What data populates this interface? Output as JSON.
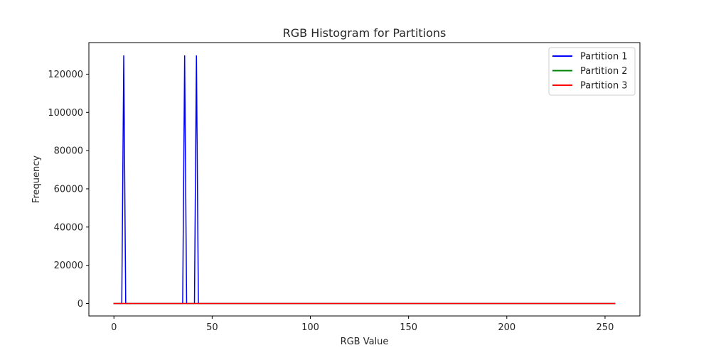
{
  "chart_data": {
    "type": "line",
    "title": "RGB Histogram for Partitions",
    "xlabel": "RGB Value",
    "ylabel": "Frequency",
    "xlim": [
      -12.75,
      267.75
    ],
    "ylim": [
      -6500,
      136500
    ],
    "xticks": [
      0,
      50,
      100,
      150,
      200,
      250
    ],
    "xtick_labels": [
      "0",
      "50",
      "100",
      "150",
      "200",
      "250"
    ],
    "yticks": [
      0,
      20000,
      40000,
      60000,
      80000,
      100000,
      120000
    ],
    "ytick_labels": [
      "0",
      "20000",
      "40000",
      "60000",
      "80000",
      "100000",
      "120000"
    ],
    "grid": false,
    "legend_position": "top-right",
    "series": [
      {
        "name": "Partition 1",
        "color": "#0000ff",
        "points": [
          [
            0,
            0
          ],
          [
            4,
            0
          ],
          [
            5,
            129600
          ],
          [
            6,
            0
          ],
          [
            35,
            0
          ],
          [
            36,
            129600
          ],
          [
            37,
            0
          ],
          [
            41,
            0
          ],
          [
            42,
            129600
          ],
          [
            43,
            0
          ],
          [
            255,
            0
          ]
        ]
      },
      {
        "name": "Partition 2",
        "color": "#008000",
        "points": [
          [
            0,
            0
          ],
          [
            255,
            0
          ]
        ]
      },
      {
        "name": "Partition 3",
        "color": "#ff0000",
        "points": [
          [
            0,
            0
          ],
          [
            255,
            0
          ]
        ]
      }
    ]
  }
}
